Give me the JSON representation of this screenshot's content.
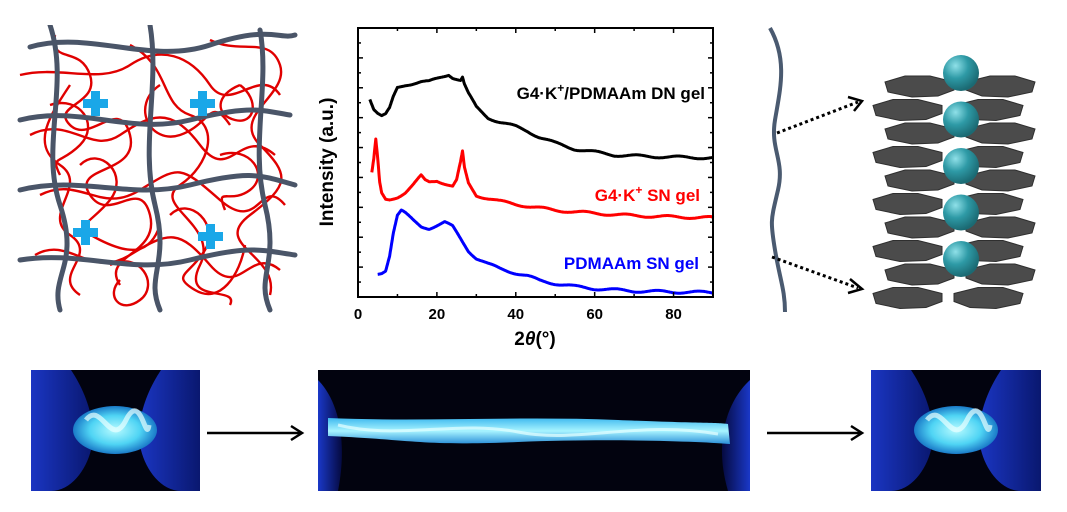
{
  "figure": {
    "network_diagram": {
      "description": "Double network hydrogel schematic",
      "network_1_color": "#4a5568",
      "network_2_color": "#e00000",
      "cation_icon_color": "#1aa7e8",
      "cation_count": 4
    },
    "gquadruplex_diagram": {
      "description": "G-quadruplex stack with K+ ions",
      "chain_color": "#4a5a70",
      "tetrad_color": "#4b4b4b",
      "ion_color": "#2e9aa6",
      "ion_count": 5,
      "tetrad_layers": 10
    },
    "photos": [
      {
        "label": "twisted gel (relaxed)"
      },
      {
        "label": "twisted gel (stretched)"
      },
      {
        "label": "twisted gel (recovered)"
      }
    ]
  },
  "chart_data": {
    "type": "line",
    "title": "",
    "xlabel": "2θ(°)",
    "xlabel_prefix": "2",
    "xlabel_symbol": "θ",
    "xlabel_suffix": "(°)",
    "ylabel": "Intensity (a.u.)",
    "xlim": [
      0,
      90
    ],
    "ylim": [
      0,
      9
    ],
    "xticks": [
      0,
      20,
      40,
      60,
      80
    ],
    "xtick_labels": [
      "0",
      "20",
      "40",
      "60",
      "80"
    ],
    "ytick_labels_shown": false,
    "grid": false,
    "legend": "inline labels right of each curve",
    "series": [
      {
        "name": "G4·K+/PDMAAm DN gel",
        "label_main": "G4·K",
        "label_sup": "+",
        "label_rest": "/PDMAAm DN gel",
        "color": "#000000",
        "x": [
          3,
          4,
          5,
          6,
          7,
          8,
          9,
          10,
          11,
          12,
          14,
          16,
          18,
          20,
          22,
          23,
          24,
          25,
          26,
          26.5,
          27,
          28,
          30,
          33,
          36,
          40,
          43,
          46,
          50,
          55,
          60,
          65,
          70,
          75,
          80,
          85,
          90
        ],
        "y": [
          6.65,
          6.3,
          6.15,
          6.05,
          6.1,
          6.3,
          6.7,
          7.0,
          7.05,
          7.1,
          7.15,
          7.2,
          7.2,
          7.3,
          7.4,
          7.45,
          7.35,
          7.3,
          7.25,
          7.35,
          7.1,
          6.8,
          6.35,
          6.0,
          5.85,
          5.7,
          5.55,
          5.35,
          5.15,
          4.95,
          4.85,
          4.75,
          4.72,
          4.7,
          4.68,
          4.67,
          4.65
        ]
      },
      {
        "name": "G4·K+ SN gel",
        "label_main": "G4·K",
        "label_sup": "+",
        "label_rest": " SN gel",
        "color": "#ff0000",
        "x": [
          3.5,
          4,
          4.5,
          5,
          5.5,
          6,
          7,
          8,
          10,
          12,
          14,
          16,
          17,
          18,
          20,
          22,
          24,
          25,
          26,
          26.5,
          27,
          28,
          30,
          33,
          36,
          40,
          45,
          50,
          55,
          60,
          70,
          80,
          90
        ],
        "y": [
          4.15,
          4.6,
          5.25,
          4.6,
          3.8,
          3.45,
          3.25,
          3.25,
          3.35,
          3.5,
          3.75,
          4.05,
          3.9,
          3.85,
          3.9,
          3.8,
          3.7,
          3.9,
          4.5,
          4.85,
          4.3,
          3.8,
          3.4,
          3.3,
          3.2,
          3.1,
          3.0,
          2.9,
          2.85,
          2.8,
          2.72,
          2.68,
          2.65
        ]
      },
      {
        "name": "PDMAAm SN gel",
        "label_main": "PDMAAm SN gel",
        "label_sup": "",
        "label_rest": "",
        "color": "#0000ff",
        "x": [
          5,
          6,
          7,
          8,
          9,
          10,
          11,
          12,
          14,
          16,
          18,
          20,
          22,
          24,
          26,
          28,
          30,
          33,
          36,
          40,
          43,
          46,
          50,
          55,
          60,
          70,
          80,
          90
        ],
        "y": [
          0.75,
          0.8,
          0.9,
          1.4,
          2.2,
          2.75,
          2.9,
          2.8,
          2.55,
          2.35,
          2.3,
          2.4,
          2.5,
          2.35,
          1.95,
          1.55,
          1.3,
          1.1,
          0.95,
          0.8,
          0.7,
          0.55,
          0.45,
          0.35,
          0.28,
          0.2,
          0.17,
          0.15
        ]
      }
    ]
  }
}
